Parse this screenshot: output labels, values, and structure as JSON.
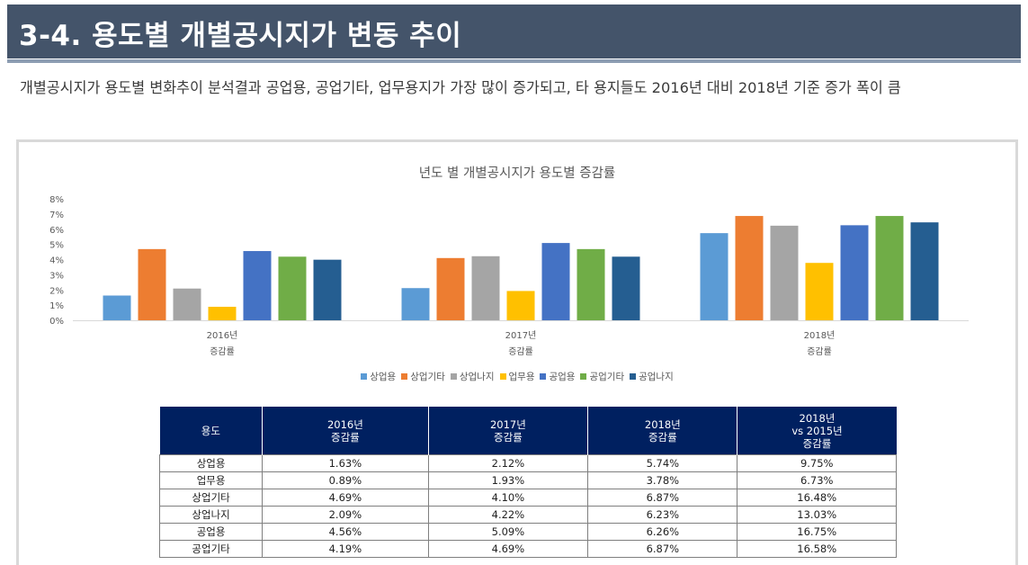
{
  "page": {
    "title": "3-4. 용도별 개별공시지가 변동 추이",
    "summary": "개별공시지가 용도별 변화추이 분석결과 공업용, 공업기타, 업무용지가 가장 많이 증가되고, 타 용지들도 2016년 대비 2018년 기준 증가 폭이 큼"
  },
  "chart_data": {
    "type": "bar",
    "title": "년도 별 개별공시지가 용도별 증감률",
    "categories": [
      "2016년\n증감률",
      "2017년\n증감률",
      "2018년\n증감률"
    ],
    "yticks": [
      "0%",
      "1%",
      "2%",
      "3%",
      "4%",
      "5%",
      "6%",
      "7%",
      "8%"
    ],
    "ylim": [
      0,
      8
    ],
    "grid": false,
    "legend_position": "bottom",
    "series": [
      {
        "name": "상업용",
        "color": "#5b9bd5",
        "values": [
          1.63,
          2.12,
          5.74
        ]
      },
      {
        "name": "상업기타",
        "color": "#ed7d31",
        "values": [
          4.69,
          4.1,
          6.87
        ]
      },
      {
        "name": "상업나지",
        "color": "#a5a5a5",
        "values": [
          2.09,
          4.22,
          6.23
        ]
      },
      {
        "name": "업무용",
        "color": "#ffc000",
        "values": [
          0.89,
          1.93,
          3.78
        ]
      },
      {
        "name": "공업용",
        "color": "#4472c4",
        "values": [
          4.56,
          5.09,
          6.26
        ]
      },
      {
        "name": "공업기타",
        "color": "#70ad47",
        "values": [
          4.19,
          4.69,
          6.87
        ]
      },
      {
        "name": "공업나지",
        "color": "#255e91",
        "values": [
          3.99,
          4.19,
          6.45
        ]
      }
    ]
  },
  "table": {
    "headers": [
      "용도",
      "2016년\n증감률",
      "2017년\n증감률",
      "2018년\n증감률",
      "2018년\nvs 2015년\n증감률"
    ],
    "rows": [
      [
        "상업용",
        "1.63%",
        "2.12%",
        "5.74%",
        "9.75%"
      ],
      [
        "업무용",
        "0.89%",
        "1.93%",
        "3.78%",
        "6.73%"
      ],
      [
        "상업기타",
        "4.69%",
        "4.10%",
        "6.87%",
        "16.48%"
      ],
      [
        "상업나지",
        "2.09%",
        "4.22%",
        "6.23%",
        "13.03%"
      ],
      [
        "공업용",
        "4.56%",
        "5.09%",
        "6.26%",
        "16.75%"
      ],
      [
        "공업기타",
        "4.19%",
        "4.69%",
        "6.87%",
        "16.58%"
      ]
    ]
  }
}
